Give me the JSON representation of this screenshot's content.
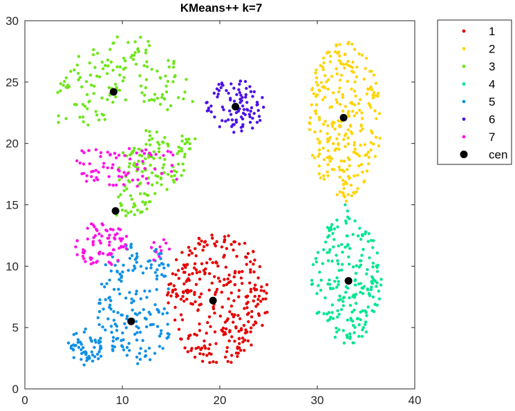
{
  "chart_data": {
    "type": "scatter",
    "title": "KMeans++ k=7",
    "xlabel": "",
    "ylabel": "",
    "xlim": [
      0,
      40
    ],
    "ylim": [
      0,
      30
    ],
    "xticks": [
      0,
      10,
      20,
      30,
      40
    ],
    "yticks": [
      0,
      5,
      10,
      15,
      20,
      25,
      30
    ],
    "grid": false,
    "legend_position": "outside-top-right",
    "series": [
      {
        "name": "1",
        "color": "#e60000",
        "marker": "dot",
        "clusters": [
          {
            "shape": "disc",
            "cx": 19.8,
            "cy": 7.4,
            "rx": 5.2,
            "ry": 5.5,
            "count": 310
          }
        ]
      },
      {
        "name": "2",
        "color": "#ffd400",
        "marker": "dot",
        "clusters": [
          {
            "shape": "disc",
            "cx": 32.8,
            "cy": 22.0,
            "rx": 3.8,
            "ry": 6.4,
            "count": 270
          },
          {
            "shape": "line",
            "x1": 32.5,
            "y1": 17.0,
            "x2": 33.0,
            "y2": 15.3,
            "count": 6
          }
        ]
      },
      {
        "name": "3",
        "color": "#6ee61a",
        "marker": "dot",
        "clusters": [
          {
            "shape": "crescent",
            "cx": 10.2,
            "cy": 21.5,
            "r_in": 2.0,
            "r_out": 7.4,
            "theta_min": 15,
            "theta_max": 180,
            "count": 290
          }
        ]
      },
      {
        "name": "4",
        "color": "#00e691",
        "marker": "dot",
        "clusters": [
          {
            "shape": "disc",
            "cx": 33.0,
            "cy": 8.8,
            "rx": 3.6,
            "ry": 5.2,
            "count": 210
          },
          {
            "shape": "line",
            "x1": 33.0,
            "y1": 15.0,
            "x2": 33.0,
            "y2": 13.5,
            "count": 4
          }
        ]
      },
      {
        "name": "5",
        "color": "#0f91e6",
        "marker": "dot",
        "clusters": [
          {
            "shape": "halfdisc",
            "cx": 11.5,
            "cy": 7.0,
            "rx": 4.2,
            "ry": 5.0,
            "xmax": 14.8,
            "count": 180
          },
          {
            "shape": "disc",
            "cx": 6.3,
            "cy": 3.4,
            "rx": 1.9,
            "ry": 1.5,
            "count": 55
          }
        ]
      },
      {
        "name": "6",
        "color": "#4d12e6",
        "marker": "dot",
        "clusters": [
          {
            "shape": "disc",
            "cx": 21.6,
            "cy": 23.0,
            "rx": 3.1,
            "ry": 2.2,
            "count": 95
          }
        ]
      },
      {
        "name": "7",
        "color": "#ff12e6",
        "marker": "dot",
        "clusters": [
          {
            "shape": "band",
            "xmin": 5.3,
            "xmax": 15.6,
            "ymin": 16.5,
            "ymax": 19.6,
            "count": 75
          },
          {
            "shape": "disc",
            "cx": 7.8,
            "cy": 11.8,
            "rx": 2.8,
            "ry": 1.8,
            "count": 75
          },
          {
            "shape": "band",
            "xmin": 12.6,
            "xmax": 14.9,
            "ymin": 10.5,
            "ymax": 12.2,
            "count": 10
          }
        ]
      }
    ],
    "centroids": {
      "name": "cen",
      "color": "#000000",
      "points": [
        {
          "x": 19.3,
          "y": 7.2
        },
        {
          "x": 32.7,
          "y": 22.1
        },
        {
          "x": 9.1,
          "y": 24.2
        },
        {
          "x": 33.2,
          "y": 8.8
        },
        {
          "x": 10.9,
          "y": 5.5
        },
        {
          "x": 21.6,
          "y": 23.0
        },
        {
          "x": 9.3,
          "y": 14.5
        }
      ]
    }
  }
}
